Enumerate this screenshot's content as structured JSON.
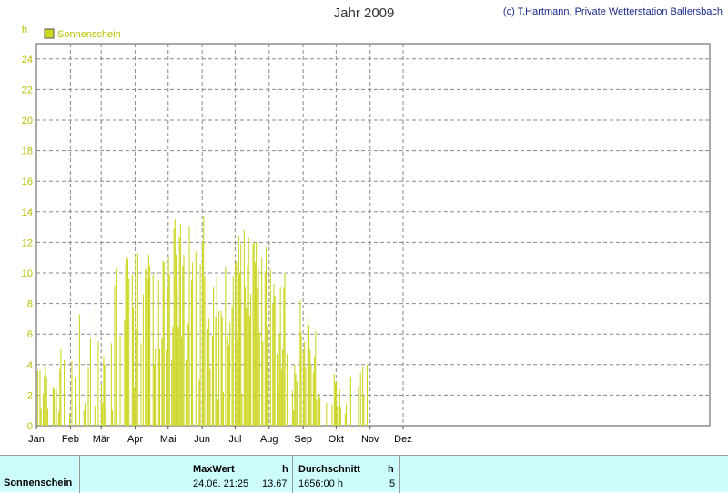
{
  "header": {
    "title": "Jahr 2009",
    "copyright": "(c) T.Hartmann, Private Wetterstation Ballersbach"
  },
  "colors": {
    "series": "#ccd624",
    "label": "#b8c000",
    "grid": "#888888",
    "footer_bg": "#ccfcfc"
  },
  "chart_data": {
    "type": "bar",
    "title": "Jahr 2009",
    "ylabel": "h",
    "ylim": [
      0,
      25
    ],
    "yticks": [
      0,
      2,
      4,
      6,
      8,
      10,
      12,
      14,
      16,
      18,
      20,
      22,
      24
    ],
    "months": [
      "Jan",
      "Feb",
      "Mär",
      "Apr",
      "Mai",
      "Jun",
      "Jul",
      "Aug",
      "Sep",
      "Okt",
      "Nov",
      "Dez"
    ],
    "legend": {
      "position": "top-left"
    },
    "grid": true,
    "series": [
      {
        "name": "Sonnenschein",
        "values": [
          3.6,
          0,
          3.6,
          1.1,
          0,
          2.1,
          3.3,
          3.9,
          3.2,
          1.1,
          0,
          0,
          0,
          0,
          2.5,
          2.4,
          0,
          2.4,
          0,
          0.9,
          3.7,
          5.0,
          0,
          0,
          4.3,
          0,
          0,
          0,
          0,
          0.8,
          0,
          4.2,
          0,
          0,
          3.2,
          1.3,
          0,
          0,
          7.3,
          0,
          0,
          0,
          1.0,
          1.5,
          0,
          0,
          3.8,
          0,
          5.7,
          0,
          0,
          0,
          1.3,
          8.3,
          0,
          5.5,
          0,
          0,
          2.7,
          1.5,
          4.5,
          4.0,
          1.0,
          0,
          0,
          0,
          0,
          5.4,
          1.0,
          0,
          9.2,
          0,
          10.3,
          0,
          0,
          5.9,
          0,
          0,
          0,
          6.9,
          10.5,
          11.0,
          10.9,
          9.6,
          0,
          0,
          9.9,
          7.8,
          2.5,
          11.2,
          6.3,
          11.3,
          0,
          0,
          5.4,
          0,
          8.6,
          0,
          10.2,
          10.4,
          9.6,
          11.2,
          10.5,
          0,
          0,
          9.9,
          4.0,
          5.0,
          0,
          0,
          9.5,
          5.0,
          0,
          5.7,
          10.8,
          10.7,
          0,
          5.0,
          9.0,
          11.0,
          9.9,
          0,
          4.3,
          6.5,
          12.9,
          13.5,
          11.2,
          9.2,
          6.5,
          12.3,
          13.2,
          5.8,
          10.5,
          11.2,
          0,
          4.3,
          0,
          6.7,
          13.0,
          0,
          9.5,
          10.7,
          0,
          0,
          11.4,
          13.6,
          0,
          3.0,
          10.6,
          0,
          12.0,
          13.7,
          9.8,
          0,
          6.9,
          6.3,
          7.0,
          3.7,
          0,
          5.9,
          9.1,
          0,
          7.1,
          9.7,
          1.7,
          7.5,
          0,
          7.5,
          7.1,
          2.2,
          0,
          10.4,
          0,
          5.8,
          5.3,
          6.8,
          0,
          7.8,
          9.8,
          0,
          10.6,
          10.8,
          5.6,
          12.4,
          10.0,
          11.9,
          2.1,
          0,
          12.8,
          9.1,
          7.7,
          10.5,
          12.3,
          7.2,
          8.6,
          0,
          11.9,
          12.0,
          10.7,
          12.0,
          9.0,
          10.2,
          6.1,
          0,
          11.0,
          5.5,
          0,
          10.1,
          11.7,
          6.5,
          3.5,
          0,
          10.2,
          0,
          8.0,
          9.3,
          8.5,
          0,
          4.7,
          2.5,
          6.0,
          9.1,
          3.7,
          5.0,
          9.0,
          10.0,
          0,
          4.7,
          0,
          0,
          0,
          0,
          2.3,
          1.0,
          4.0,
          3.4,
          2.9,
          0,
          0,
          8.2,
          6.1,
          0,
          4.9,
          5.5,
          3.8,
          0,
          7.2,
          6.6,
          5.0,
          4.0,
          0,
          3.5,
          4.5,
          6.2,
          1.7,
          0,
          2.1,
          1.8,
          0,
          0,
          0,
          0,
          0,
          1.5,
          0,
          0,
          0,
          0,
          1.4,
          0,
          3.4,
          2.8,
          2.9,
          1.3,
          0,
          2.4,
          1.2,
          0,
          0,
          0,
          0.8,
          1.4,
          0,
          0,
          0,
          3.2,
          0,
          0,
          0,
          0,
          0,
          0,
          2.5,
          0,
          3.5,
          0,
          3.8,
          2.0,
          0,
          0,
          4.0,
          0,
          0
        ]
      }
    ]
  },
  "footer": {
    "label": "Sonnenschein",
    "max_header": "MaxWert",
    "max_unit": "h",
    "max_date": "24.06.  21:25",
    "max_value": "13.67",
    "avg_header": "Durchschnitt",
    "avg_unit": "h",
    "avg_value": "1656:00 h",
    "avg_count": "5"
  }
}
